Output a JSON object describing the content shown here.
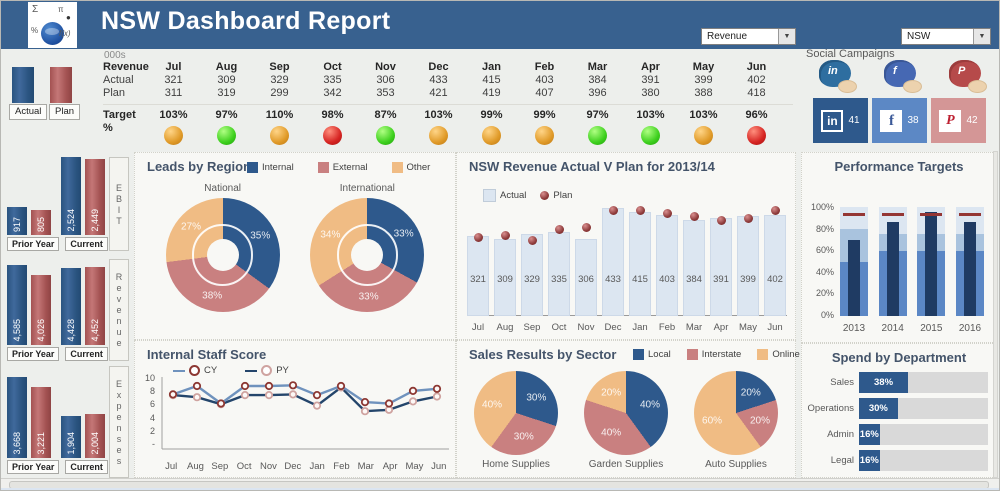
{
  "header": {
    "title": "NSW Dashboard Report",
    "logo_symbols": [
      "Σ",
      "π",
      "●",
      "%",
      "f(x)"
    ],
    "dropdown_arrow": "▼",
    "measure_dropdown": {
      "value": "Revenue"
    },
    "region_dropdown": {
      "value": "NSW"
    }
  },
  "mini_legend": {
    "actual_label": "Actual",
    "plan_label": "Plan"
  },
  "top_table": {
    "units_label": "000s",
    "section_label": "Revenue",
    "actual_label": "Actual",
    "plan_label": "Plan",
    "target_label": "Target %",
    "months": [
      "Jul",
      "Aug",
      "Sep",
      "Oct",
      "Nov",
      "Dec",
      "Jan",
      "Feb",
      "Mar",
      "Apr",
      "May",
      "Jun"
    ],
    "actual": [
      "321",
      "309",
      "329",
      "335",
      "306",
      "433",
      "415",
      "403",
      "384",
      "391",
      "399",
      "402"
    ],
    "plan": [
      "311",
      "319",
      "299",
      "342",
      "353",
      "421",
      "419",
      "407",
      "396",
      "380",
      "388",
      "418"
    ],
    "target_pct": [
      "103%",
      "97%",
      "110%",
      "98%",
      "87%",
      "103%",
      "99%",
      "99%",
      "97%",
      "103%",
      "103%",
      "96%"
    ],
    "lights": [
      "amber",
      "green",
      "amber",
      "red",
      "green",
      "amber",
      "amber",
      "amber",
      "green",
      "green",
      "amber",
      "red"
    ]
  },
  "social": {
    "title": "Social Campaigns",
    "tiles": [
      {
        "network": "linkedin",
        "logo": "in",
        "count": "41"
      },
      {
        "network": "facebook",
        "logo": "f",
        "count": "38"
      },
      {
        "network": "pinterest",
        "logo": "P",
        "count": "42"
      }
    ]
  },
  "colors": {
    "header_blue": "#38618F",
    "navy": "#2E598C",
    "dark_navy": "#1F3B63",
    "pink": "#C98080",
    "orange": "#F0BC84",
    "light_blue_bar": "#DCE6F1",
    "plan_dot": "#8E3B3B",
    "kpi_blue": "#2F5B8F",
    "kpi_red": "#B35C5C",
    "cy_line": "#6F92BD",
    "cy_marker_ring": "#8C3732",
    "py_line": "#24456B",
    "py_marker_ring": "#CFA3A0",
    "amber_light": "#E09A28",
    "green_light": "#3ED01E",
    "red_light": "#D62422"
  },
  "chart_data": [
    {
      "id": "ebit",
      "type": "bar",
      "title": "EBIT",
      "group_labels": [
        "Prior Year",
        "Current"
      ],
      "series": [
        {
          "name": "Actual",
          "values": [
            917,
            2524
          ],
          "display": [
            "917",
            "2,524"
          ]
        },
        {
          "name": "Plan",
          "values": [
            805,
            2449
          ],
          "display": [
            "805",
            "2,449"
          ]
        }
      ]
    },
    {
      "id": "revenue_kpi",
      "type": "bar",
      "title": "Revenue",
      "group_labels": [
        "Prior Year",
        "Current"
      ],
      "series": [
        {
          "name": "Actual",
          "values": [
            4585,
            4428
          ],
          "display": [
            "4,585",
            "4,428"
          ]
        },
        {
          "name": "Plan",
          "values": [
            4026,
            4452
          ],
          "display": [
            "4,026",
            "4,452"
          ]
        }
      ]
    },
    {
      "id": "expenses_kpi",
      "type": "bar",
      "title": "Expenses",
      "group_labels": [
        "Prior Year",
        "Current"
      ],
      "series": [
        {
          "name": "Actual",
          "values": [
            3668,
            1904
          ],
          "display": [
            "3,668",
            "1,904"
          ]
        },
        {
          "name": "Plan",
          "values": [
            3221,
            2004
          ],
          "display": [
            "3,221",
            "2,004"
          ]
        }
      ]
    },
    {
      "id": "leads_by_region",
      "type": "pie",
      "title": "Leads by Region",
      "legend": [
        "Internal",
        "External",
        "Other"
      ],
      "donuts": [
        {
          "name": "National",
          "values": [
            35,
            38,
            27
          ],
          "labels": [
            "35%",
            "38%",
            "27%"
          ]
        },
        {
          "name": "International",
          "values": [
            33,
            33,
            34
          ],
          "labels": [
            "33%",
            "33%",
            "34%"
          ]
        }
      ]
    },
    {
      "id": "nsw_revenue",
      "type": "bar",
      "title": "NSW Revenue Actual V Plan for 2013/14",
      "legend": [
        "Actual",
        "Plan"
      ],
      "ylim": [
        0,
        450
      ],
      "categories": [
        "Jul",
        "Aug",
        "Sep",
        "Oct",
        "Nov",
        "Dec",
        "Jan",
        "Feb",
        "Mar",
        "Apr",
        "May",
        "Jun"
      ],
      "series": [
        {
          "name": "Actual",
          "values": [
            321,
            309,
            329,
            335,
            306,
            433,
            415,
            403,
            384,
            391,
            399,
            402
          ]
        },
        {
          "name": "Plan",
          "values": [
            311,
            319,
            299,
            342,
            353,
            421,
            419,
            407,
            396,
            380,
            388,
            418
          ]
        }
      ]
    },
    {
      "id": "performance_targets",
      "type": "bar",
      "title": "Performance Targets",
      "categories": [
        "2013",
        "2014",
        "2015",
        "2016"
      ],
      "values": [
        70,
        86,
        95,
        86
      ],
      "target": 92,
      "bands": [
        [
          50,
          80
        ],
        [
          60,
          75
        ],
        [
          60,
          75
        ],
        [
          60,
          75
        ]
      ],
      "y_ticks": [
        "100%",
        "80%",
        "60%",
        "40%",
        "20%",
        "0%"
      ],
      "ylim": [
        0,
        100
      ]
    },
    {
      "id": "staff_score",
      "type": "line",
      "title": "Internal Staff Score",
      "categories": [
        "Jul",
        "Aug",
        "Sep",
        "Oct",
        "Nov",
        "Dec",
        "Jan",
        "Feb",
        "Mar",
        "Apr",
        "May",
        "Jun"
      ],
      "series": [
        {
          "name": "CY",
          "values": [
            7.8,
            9.0,
            6.5,
            9.0,
            9.0,
            9.1,
            7.7,
            9.0,
            6.7,
            6.5,
            8.3,
            8.6
          ]
        },
        {
          "name": "PY",
          "values": [
            7.7,
            7.4,
            6.4,
            7.7,
            7.7,
            7.8,
            6.2,
            8.8,
            5.4,
            5.6,
            6.8,
            7.5
          ]
        }
      ],
      "y_ticks": [
        "10",
        "8",
        "6",
        "4",
        "2",
        "-"
      ],
      "ylim": [
        0,
        10
      ]
    },
    {
      "id": "sales_by_sector",
      "type": "pie",
      "title": "Sales Results by Sector",
      "legend": [
        "Local",
        "Interstate",
        "Online"
      ],
      "pies": [
        {
          "name": "Home Supplies",
          "values": [
            30,
            30,
            40
          ],
          "labels": [
            "30%",
            "30%",
            "40%"
          ]
        },
        {
          "name": "Garden Supplies",
          "values": [
            40,
            40,
            20
          ],
          "labels": [
            "40%",
            "40%",
            "20%"
          ]
        },
        {
          "name": "Auto Supplies",
          "values": [
            20,
            20,
            60
          ],
          "labels": [
            "20%",
            "20%",
            "60%"
          ]
        }
      ]
    },
    {
      "id": "spend_by_department",
      "type": "bar",
      "title": "Spend by Department",
      "categories": [
        "Sales",
        "Operations",
        "Admin",
        "Legal"
      ],
      "values": [
        38,
        30,
        16,
        16
      ],
      "labels": [
        "38%",
        "30%",
        "16%",
        "16%"
      ]
    }
  ]
}
